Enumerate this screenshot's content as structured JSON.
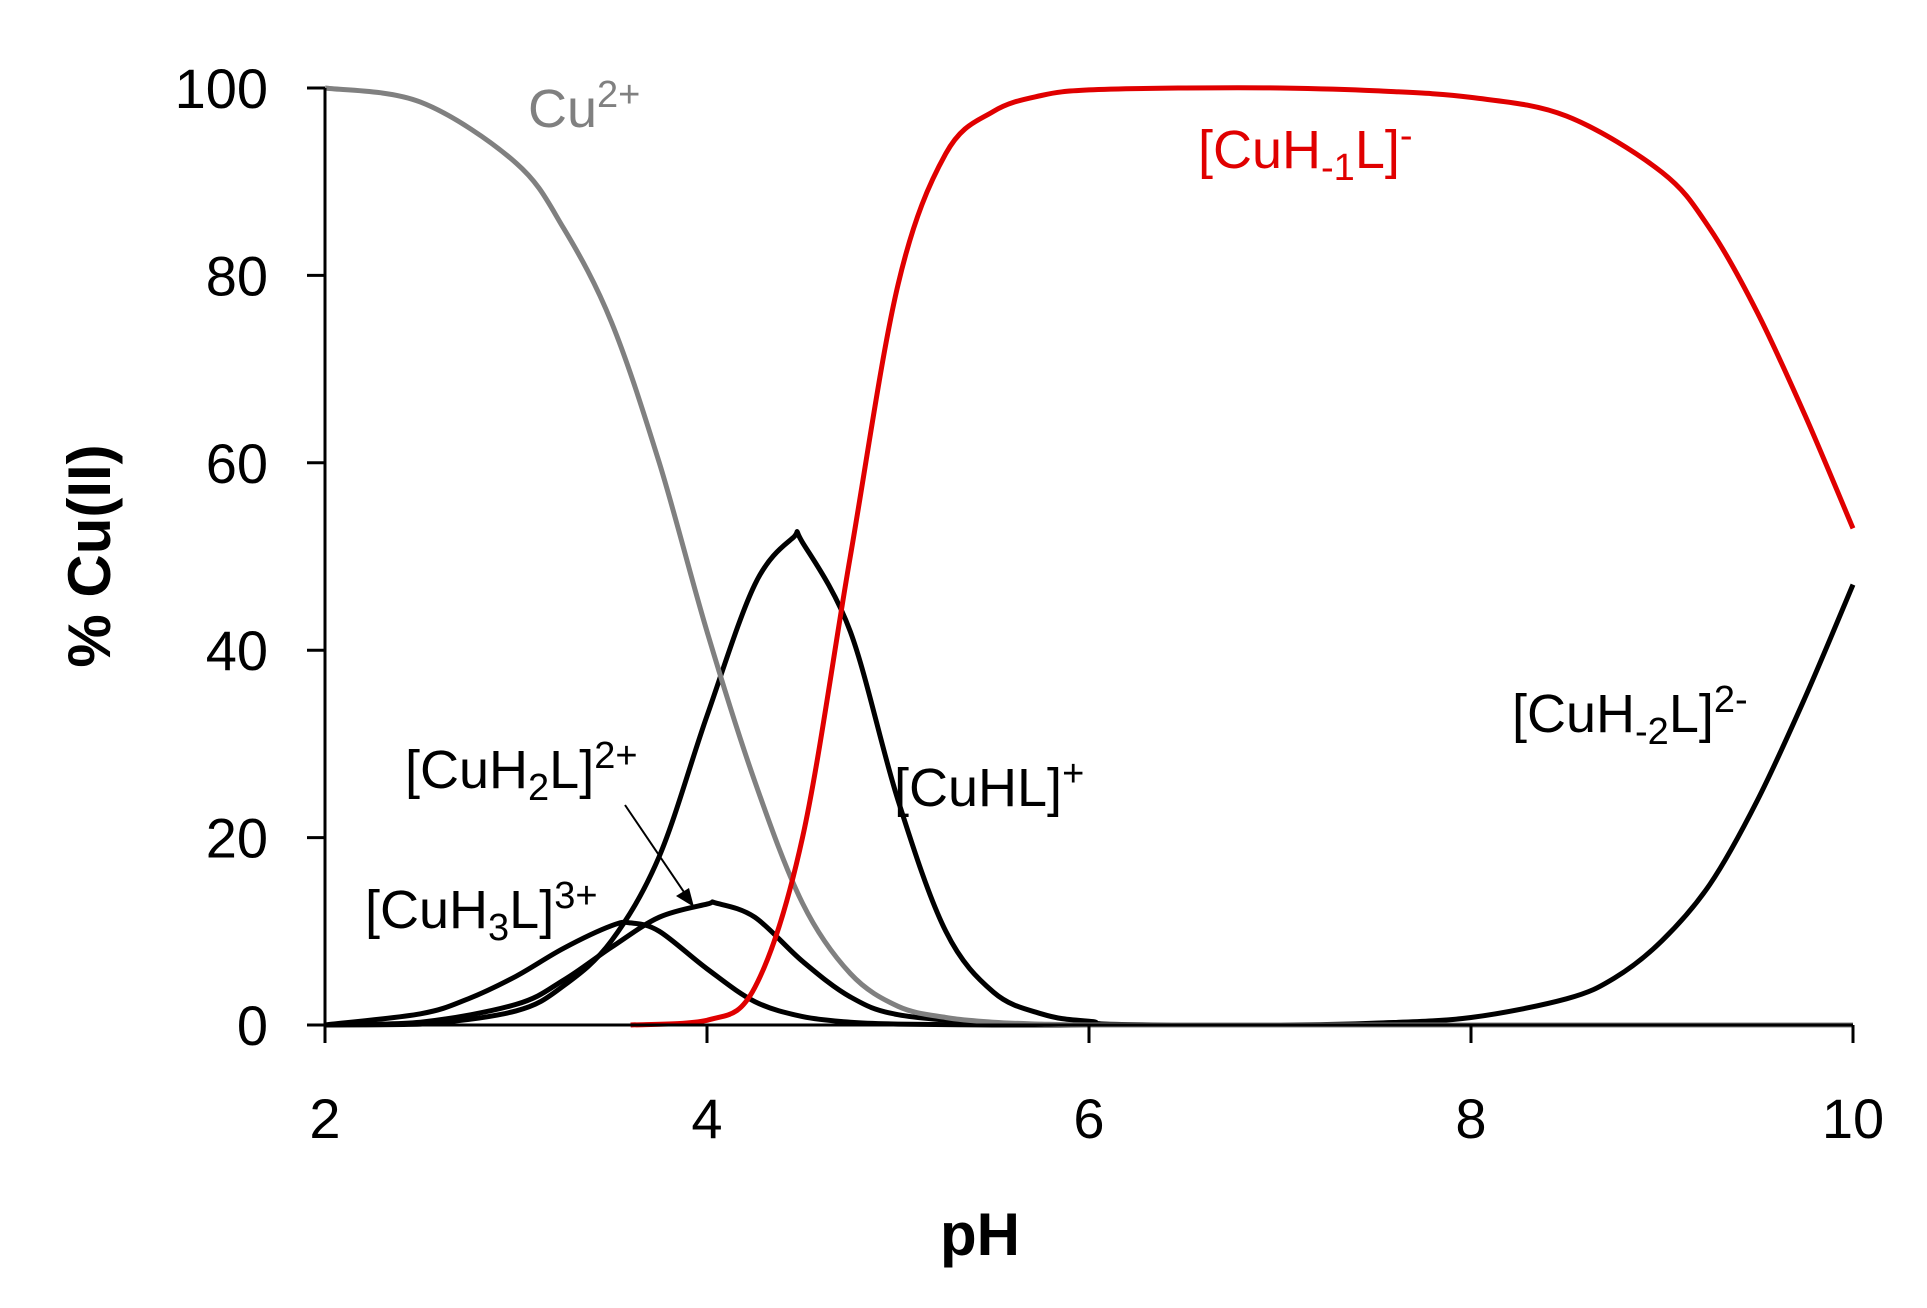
{
  "chart_data": {
    "type": "line",
    "title": "",
    "xlabel": "pH",
    "ylabel": "% Cu(II)",
    "xlim": [
      2,
      10
    ],
    "ylim": [
      0,
      100
    ],
    "xticks": [
      "2",
      "4",
      "6",
      "8",
      "10"
    ],
    "yticks": [
      "0",
      "20",
      "40",
      "60",
      "80",
      "100"
    ],
    "grid": false,
    "legend": "none",
    "series": [
      {
        "name": "Cu2+",
        "label_main": "Cu",
        "label_sup": "2+",
        "color": "#808080",
        "x": [
          2.0,
          2.5,
          3.0,
          3.25,
          3.5,
          3.75,
          4.0,
          4.25,
          4.5,
          4.75,
          5.0,
          5.25,
          5.5,
          5.75,
          6.0,
          6.5,
          7.0,
          8.0,
          10.0
        ],
        "y": [
          100,
          98.5,
          92,
          85,
          75,
          60,
          42,
          26,
          13,
          5.5,
          2,
          0.8,
          0.3,
          0.1,
          0,
          0,
          0,
          0,
          0
        ]
      },
      {
        "name": "[CuH3L]3+",
        "label_pre": "[CuH",
        "label_sub": "3",
        "label_post": "L]",
        "label_sup": "3+",
        "color": "#000000",
        "x": [
          2.0,
          2.5,
          2.75,
          3.0,
          3.25,
          3.5,
          3.6,
          3.75,
          4.0,
          4.25,
          4.5,
          4.75,
          5.0,
          5.5,
          6.0,
          10.0
        ],
        "y": [
          0,
          1.2,
          2.8,
          5.2,
          8.2,
          10.6,
          10.9,
          10,
          6,
          2.5,
          0.9,
          0.3,
          0.1,
          0,
          0,
          0
        ]
      },
      {
        "name": "[CuH2L]2+",
        "label_pre": "[CuH",
        "label_sub": "2",
        "label_post": "L]",
        "label_sup": "2+",
        "color": "#000000",
        "x": [
          2.0,
          2.5,
          3.0,
          3.25,
          3.5,
          3.75,
          4.0,
          4.05,
          4.25,
          4.5,
          4.75,
          5.0,
          5.5,
          6.0,
          10.0
        ],
        "y": [
          0,
          0.3,
          2.2,
          4.8,
          8.3,
          11.5,
          12.9,
          13,
          11.5,
          6.8,
          3,
          1.1,
          0.2,
          0,
          0
        ]
      },
      {
        "name": "[CuHL]+",
        "label_pre": "[CuHL]",
        "label_sup": "+",
        "color": "#000000",
        "x": [
          2.0,
          2.5,
          3.0,
          3.25,
          3.5,
          3.75,
          4.0,
          4.25,
          4.45,
          4.5,
          4.75,
          5.0,
          5.25,
          5.5,
          5.75,
          6.0,
          6.5,
          10.0
        ],
        "y": [
          0,
          0.1,
          1.5,
          4.2,
          9,
          18,
          33,
          47,
          52,
          51.5,
          42,
          24,
          10,
          3.5,
          1.2,
          0.4,
          0,
          0
        ]
      },
      {
        "name": "[CuH-1L]-",
        "label_pre": "[CuH",
        "label_sub": "-1",
        "label_post": "L]",
        "label_sup": "-",
        "color": "#e00000",
        "x": [
          3.6,
          4.0,
          4.25,
          4.5,
          4.75,
          5.0,
          5.25,
          5.5,
          5.75,
          6.0,
          6.5,
          7.0,
          7.5,
          8.0,
          8.5,
          9.0,
          9.25,
          9.5,
          9.75,
          10.0
        ],
        "y": [
          0,
          0.5,
          4,
          20,
          50,
          79,
          93,
          97.5,
          99.2,
          99.8,
          100,
          100,
          99.7,
          99,
          97,
          91,
          85,
          76,
          65,
          53
        ]
      },
      {
        "name": "[CuH-2L]2-",
        "label_pre": "[CuH",
        "label_sub": "-2",
        "label_post": "L]",
        "label_sup": "2-",
        "color": "#000000",
        "x": [
          6.0,
          7.0,
          7.5,
          8.0,
          8.5,
          8.75,
          9.0,
          9.25,
          9.5,
          9.75,
          10.0
        ],
        "y": [
          0,
          0,
          0.2,
          0.8,
          2.8,
          5,
          9,
          15,
          24,
          35,
          47
        ]
      }
    ]
  }
}
